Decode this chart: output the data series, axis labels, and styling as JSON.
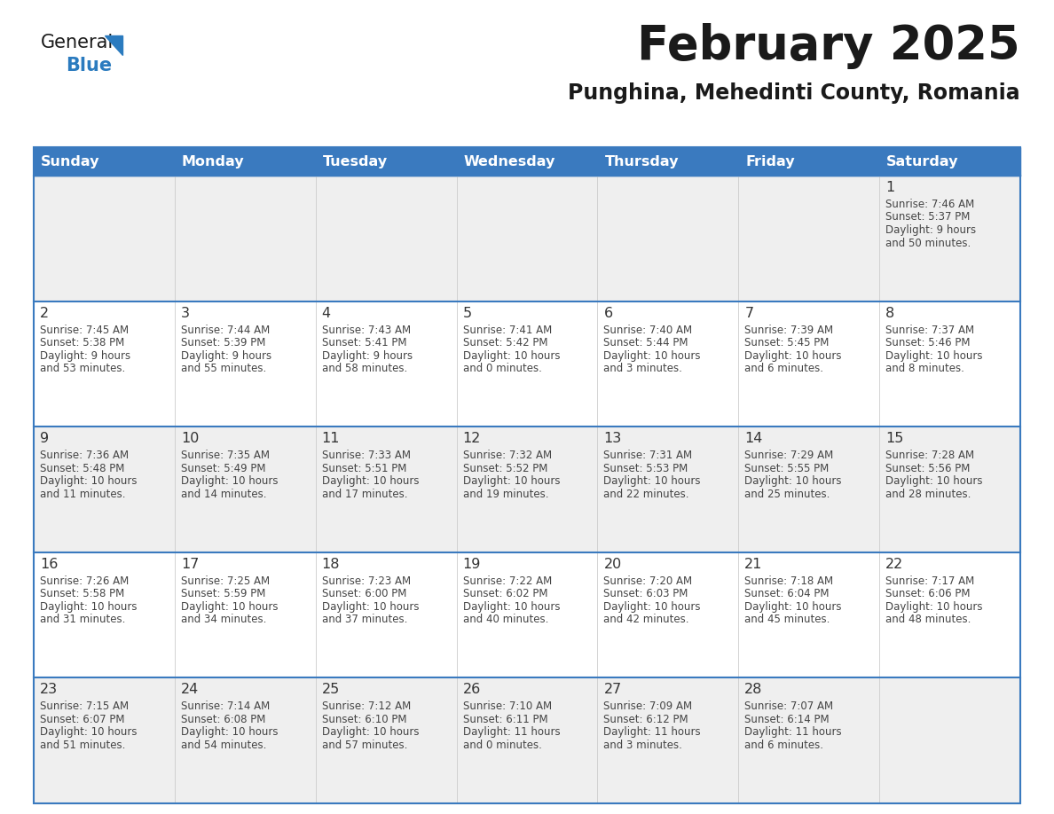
{
  "title": "February 2025",
  "subtitle": "Punghina, Mehedinti County, Romania",
  "header_color": "#3a7abf",
  "header_text_color": "#ffffff",
  "day_names": [
    "Sunday",
    "Monday",
    "Tuesday",
    "Wednesday",
    "Thursday",
    "Friday",
    "Saturday"
  ],
  "cell_bg_odd": "#efefef",
  "cell_bg_even": "#ffffff",
  "border_color": "#3a7abf",
  "text_color": "#444444",
  "day_num_color": "#333333",
  "title_color": "#1a1a1a",
  "subtitle_color": "#1a1a1a",
  "logo_general_color": "#1a1a1a",
  "logo_blue_color": "#2b7bbf",
  "calendar": [
    [
      null,
      null,
      null,
      null,
      null,
      null,
      {
        "day": "1",
        "sunrise": "7:46 AM",
        "sunset": "5:37 PM",
        "daylight_h": "9",
        "daylight_m": "50"
      }
    ],
    [
      {
        "day": "2",
        "sunrise": "7:45 AM",
        "sunset": "5:38 PM",
        "daylight_h": "9",
        "daylight_m": "53"
      },
      {
        "day": "3",
        "sunrise": "7:44 AM",
        "sunset": "5:39 PM",
        "daylight_h": "9",
        "daylight_m": "55"
      },
      {
        "day": "4",
        "sunrise": "7:43 AM",
        "sunset": "5:41 PM",
        "daylight_h": "9",
        "daylight_m": "58"
      },
      {
        "day": "5",
        "sunrise": "7:41 AM",
        "sunset": "5:42 PM",
        "daylight_h": "10",
        "daylight_m": "0"
      },
      {
        "day": "6",
        "sunrise": "7:40 AM",
        "sunset": "5:44 PM",
        "daylight_h": "10",
        "daylight_m": "3"
      },
      {
        "day": "7",
        "sunrise": "7:39 AM",
        "sunset": "5:45 PM",
        "daylight_h": "10",
        "daylight_m": "6"
      },
      {
        "day": "8",
        "sunrise": "7:37 AM",
        "sunset": "5:46 PM",
        "daylight_h": "10",
        "daylight_m": "8"
      }
    ],
    [
      {
        "day": "9",
        "sunrise": "7:36 AM",
        "sunset": "5:48 PM",
        "daylight_h": "10",
        "daylight_m": "11"
      },
      {
        "day": "10",
        "sunrise": "7:35 AM",
        "sunset": "5:49 PM",
        "daylight_h": "10",
        "daylight_m": "14"
      },
      {
        "day": "11",
        "sunrise": "7:33 AM",
        "sunset": "5:51 PM",
        "daylight_h": "10",
        "daylight_m": "17"
      },
      {
        "day": "12",
        "sunrise": "7:32 AM",
        "sunset": "5:52 PM",
        "daylight_h": "10",
        "daylight_m": "19"
      },
      {
        "day": "13",
        "sunrise": "7:31 AM",
        "sunset": "5:53 PM",
        "daylight_h": "10",
        "daylight_m": "22"
      },
      {
        "day": "14",
        "sunrise": "7:29 AM",
        "sunset": "5:55 PM",
        "daylight_h": "10",
        "daylight_m": "25"
      },
      {
        "day": "15",
        "sunrise": "7:28 AM",
        "sunset": "5:56 PM",
        "daylight_h": "10",
        "daylight_m": "28"
      }
    ],
    [
      {
        "day": "16",
        "sunrise": "7:26 AM",
        "sunset": "5:58 PM",
        "daylight_h": "10",
        "daylight_m": "31"
      },
      {
        "day": "17",
        "sunrise": "7:25 AM",
        "sunset": "5:59 PM",
        "daylight_h": "10",
        "daylight_m": "34"
      },
      {
        "day": "18",
        "sunrise": "7:23 AM",
        "sunset": "6:00 PM",
        "daylight_h": "10",
        "daylight_m": "37"
      },
      {
        "day": "19",
        "sunrise": "7:22 AM",
        "sunset": "6:02 PM",
        "daylight_h": "10",
        "daylight_m": "40"
      },
      {
        "day": "20",
        "sunrise": "7:20 AM",
        "sunset": "6:03 PM",
        "daylight_h": "10",
        "daylight_m": "42"
      },
      {
        "day": "21",
        "sunrise": "7:18 AM",
        "sunset": "6:04 PM",
        "daylight_h": "10",
        "daylight_m": "45"
      },
      {
        "day": "22",
        "sunrise": "7:17 AM",
        "sunset": "6:06 PM",
        "daylight_h": "10",
        "daylight_m": "48"
      }
    ],
    [
      {
        "day": "23",
        "sunrise": "7:15 AM",
        "sunset": "6:07 PM",
        "daylight_h": "10",
        "daylight_m": "51"
      },
      {
        "day": "24",
        "sunrise": "7:14 AM",
        "sunset": "6:08 PM",
        "daylight_h": "10",
        "daylight_m": "54"
      },
      {
        "day": "25",
        "sunrise": "7:12 AM",
        "sunset": "6:10 PM",
        "daylight_h": "10",
        "daylight_m": "57"
      },
      {
        "day": "26",
        "sunrise": "7:10 AM",
        "sunset": "6:11 PM",
        "daylight_h": "11",
        "daylight_m": "0"
      },
      {
        "day": "27",
        "sunrise": "7:09 AM",
        "sunset": "6:12 PM",
        "daylight_h": "11",
        "daylight_m": "3"
      },
      {
        "day": "28",
        "sunrise": "7:07 AM",
        "sunset": "6:14 PM",
        "daylight_h": "11",
        "daylight_m": "6"
      },
      null
    ]
  ]
}
